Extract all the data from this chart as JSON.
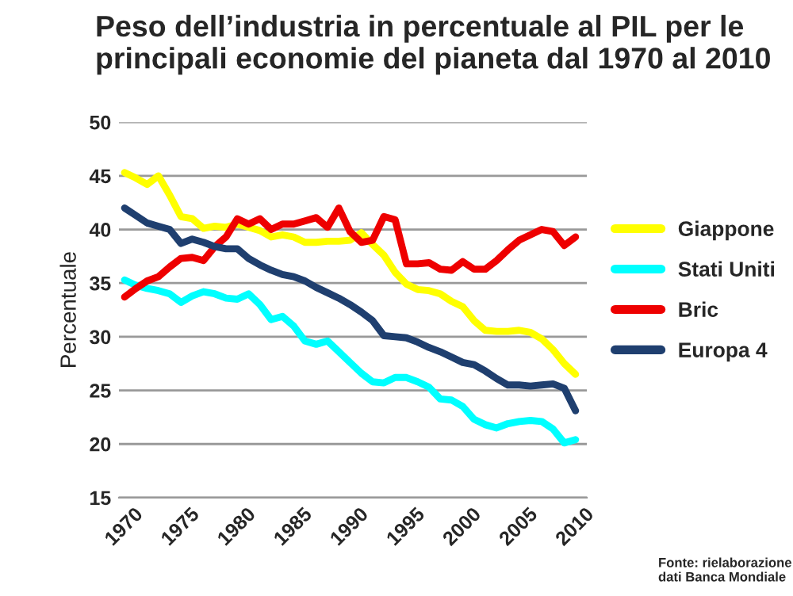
{
  "chart_data": {
    "type": "line",
    "title": "Peso dell’industria in percentuale al PIL per le principali economie del pianeta dal 1970 al 2010",
    "ylabel": "Percentuale",
    "x": [
      1970,
      1971,
      1972,
      1973,
      1974,
      1975,
      1976,
      1977,
      1978,
      1979,
      1980,
      1981,
      1982,
      1983,
      1984,
      1985,
      1986,
      1987,
      1988,
      1989,
      1990,
      1991,
      1992,
      1993,
      1994,
      1995,
      1996,
      1997,
      1998,
      1999,
      2000,
      2001,
      2002,
      2003,
      2004,
      2005,
      2006,
      2007,
      2008,
      2009,
      2010
    ],
    "series": [
      {
        "name": "Giappone",
        "color": "#ffff00",
        "values": [
          45.3,
          44.8,
          44.2,
          45,
          43.2,
          41.2,
          41,
          40.1,
          40.3,
          40.2,
          40.5,
          40.2,
          39.9,
          39.3,
          39.5,
          39.3,
          38.8,
          38.8,
          38.9,
          38.9,
          39.0,
          39.7,
          38.6,
          37.6,
          36,
          34.9,
          34.4,
          34.3,
          34.0,
          33.3,
          32.8,
          31.5,
          30.6,
          30.5,
          30.5,
          30.6,
          30.4,
          29.8,
          28.8,
          27.5,
          26.5
        ]
      },
      {
        "name": "Stati Uniti",
        "color": "#00ffff",
        "values": [
          35.3,
          34.8,
          34.5,
          34.3,
          34.0,
          33.2,
          33.8,
          34.2,
          34.0,
          33.6,
          33.5,
          34.0,
          33.0,
          31.6,
          31.9,
          31,
          29.6,
          29.3,
          29.6,
          28.6,
          27.6,
          26.6,
          25.8,
          25.7,
          26.2,
          26.2,
          25.8,
          25.3,
          24.2,
          24.1,
          23.5,
          22.3,
          21.8,
          21.5,
          21.9,
          22.1,
          22.2,
          22.1,
          21.4,
          20.1,
          20.4
        ]
      },
      {
        "name": "Bric",
        "color": "#ee0000",
        "values": [
          33.7,
          34.5,
          35.2,
          35.6,
          36.5,
          37.3,
          37.4,
          37.1,
          38.4,
          39.3,
          41.0,
          40.5,
          41.0,
          40.0,
          40.5,
          40.5,
          40.8,
          41.1,
          40.2,
          42.0,
          39.8,
          38.8,
          39.0,
          41.2,
          40.9,
          36.8,
          36.8,
          36.9,
          36.3,
          36.2,
          37.0,
          36.3,
          36.3,
          37.1,
          38.1,
          39.0,
          39.5,
          40.0,
          39.8,
          38.5,
          39.3
        ]
      },
      {
        "name": "Europa 4",
        "color": "#1f3f6f",
        "values": [
          42,
          41.3,
          40.6,
          40.3,
          40.0,
          38.7,
          39.1,
          38.8,
          38.4,
          38.2,
          38.2,
          37.3,
          36.7,
          36.2,
          35.8,
          35.6,
          35.2,
          34.6,
          34.1,
          33.6,
          33.0,
          32.3,
          31.5,
          30.1,
          30.0,
          29.9,
          29.5,
          29.0,
          28.6,
          28.1,
          27.6,
          27.4,
          26.8,
          26.1,
          25.5,
          25.5,
          25.4,
          25.5,
          25.6,
          25.2,
          23.1
        ]
      }
    ],
    "xlim": [
      1969.5,
      2011
    ],
    "xticks": [
      1970,
      1975,
      1980,
      1985,
      1990,
      1995,
      2000,
      2005,
      2010
    ],
    "ylim": [
      15,
      50
    ],
    "yticks": [
      15,
      20,
      25,
      30,
      35,
      40,
      45,
      50
    ],
    "grid": "y",
    "legend": "right",
    "line_style": "solid",
    "marker": "none",
    "annotations": [
      "Fonte: rielaborazione dati Banca Mondiale"
    ]
  }
}
